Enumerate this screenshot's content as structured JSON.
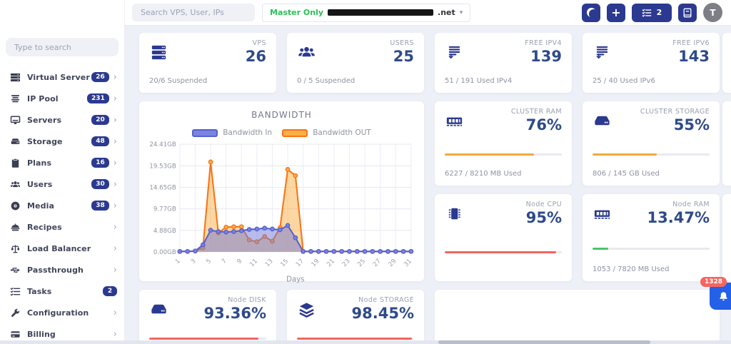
{
  "topbar": {
    "search_placeholder": "Search VPS, User, IPs",
    "master_label": "Master Only",
    "master_host_suffix": ".net",
    "tasks_count": "2",
    "avatar_letter": "T"
  },
  "sidebar": {
    "search_placeholder": "Type to search",
    "items": [
      {
        "label": "Virtual Server",
        "icon": "virtual-server",
        "badge": "26",
        "chevron": true
      },
      {
        "label": "IP Pool",
        "icon": "ip-pool",
        "badge": "231",
        "chevron": true
      },
      {
        "label": "Servers",
        "icon": "servers",
        "badge": "20",
        "chevron": true
      },
      {
        "label": "Storage",
        "icon": "storage",
        "badge": "48",
        "chevron": true
      },
      {
        "label": "Plans",
        "icon": "plans",
        "badge": "16",
        "chevron": true
      },
      {
        "label": "Users",
        "icon": "users",
        "badge": "30",
        "chevron": true
      },
      {
        "label": "Media",
        "icon": "media",
        "badge": "38",
        "chevron": true
      },
      {
        "label": "Recipes",
        "icon": "recipes",
        "badge": null,
        "chevron": true
      },
      {
        "label": "Load Balancer",
        "icon": "load-balancer",
        "badge": null,
        "chevron": true
      },
      {
        "label": "Passthrough",
        "icon": "passthrough",
        "badge": null,
        "chevron": true
      },
      {
        "label": "Tasks",
        "icon": "tasks",
        "badge": "2",
        "chevron": false
      },
      {
        "label": "Configuration",
        "icon": "configuration",
        "badge": null,
        "chevron": true
      },
      {
        "label": "Billing",
        "icon": "billing",
        "badge": null,
        "chevron": true
      }
    ]
  },
  "cards": {
    "vps": {
      "title": "VPS",
      "value": "26",
      "subtitle": "20/6 Suspended",
      "icon": "server-stack"
    },
    "users": {
      "title": "USERS",
      "value": "25",
      "subtitle": "0 / 5 Suspended",
      "icon": "users-group"
    },
    "ipv4": {
      "title": "FREE IPV4",
      "value": "139",
      "subtitle": "51 / 191 Used IPv4",
      "icon": "ip-list"
    },
    "ipv6": {
      "title": "FREE IPV6",
      "value": "143",
      "subtitle": "25 / 40 Used IPv6",
      "icon": "ip-list"
    },
    "cluster_ram": {
      "title": "CLUSTER RAM",
      "value": "76%",
      "subtitle": "6227 / 8210 MB Used",
      "progress": 76,
      "bar_color": "#f2a93b",
      "icon": "ram"
    },
    "cluster_storage": {
      "title": "CLUSTER STORAGE",
      "value": "55%",
      "subtitle": "806 / 145 GB Used",
      "progress": 55,
      "bar_color": "#f2a93b",
      "icon": "disk-drive"
    },
    "node_cpu": {
      "title": "Node CPU",
      "value": "95%",
      "subtitle": "",
      "progress": 95,
      "bar_color": "#f4655f",
      "icon": "cpu-chip"
    },
    "node_ram": {
      "title": "Node RAM",
      "value": "13.47%",
      "subtitle": "1053 / 7820 MB Used",
      "progress": 13.47,
      "bar_color": "#47c56c",
      "icon": "ram"
    },
    "node_disk": {
      "title": "Node DISK",
      "value": "93.36%",
      "progress": 93.36,
      "bar_color": "#f4655f",
      "icon": "disk-drive"
    },
    "node_storage": {
      "title": "Node STORAGE",
      "value": "98.45%",
      "progress": 98.45,
      "bar_color": "#f4655f",
      "icon": "layers"
    }
  },
  "notifications": {
    "count": "1328"
  },
  "chart_data": {
    "type": "area",
    "title": "BANDWIDTH",
    "xlabel": "Days",
    "x_ticks": [
      1,
      3,
      5,
      7,
      9,
      11,
      13,
      15,
      17,
      19,
      21,
      23,
      25,
      27,
      29,
      31
    ],
    "x_range": [
      1,
      31
    ],
    "y_ticks": [
      "0.00GB",
      "4.88GB",
      "9.77GB",
      "14.65GB",
      "19.53GB",
      "24.41GB"
    ],
    "ylim": [
      0,
      24.41
    ],
    "grid": true,
    "legend_position": "top",
    "series": [
      {
        "name": "Bandwidth OUT",
        "color": "#f97316",
        "legend_fill": "#fbaf45",
        "area_fill": "rgba(249,166,46,0.45)",
        "values": [
          0.1,
          0.1,
          0.2,
          0.9,
          20.4,
          4.3,
          5.6,
          5.7,
          5.7,
          2.7,
          2.3,
          3.5,
          2.4,
          5.5,
          18.7,
          17.3,
          0.1,
          0.1,
          0.1,
          0.1,
          0.1,
          0.1,
          0.1,
          0.1,
          0.1,
          0.1,
          0.1,
          0.1,
          0.1,
          0.1,
          0.1
        ]
      },
      {
        "name": "Bandwidth In",
        "color": "#5560cf",
        "legend_fill": "#7b84e2",
        "area_fill": "rgba(112,122,216,0.50)",
        "values": [
          0.1,
          0.1,
          0.2,
          1.6,
          4.9,
          4.6,
          4.5,
          4.6,
          4.8,
          5.1,
          5.2,
          5.4,
          5.2,
          5.0,
          6.0,
          3.2,
          0.1,
          0.1,
          0.1,
          0.1,
          0.1,
          0.1,
          0.1,
          0.1,
          0.1,
          0.1,
          0.1,
          0.1,
          0.1,
          0.1,
          0.1
        ]
      }
    ]
  }
}
